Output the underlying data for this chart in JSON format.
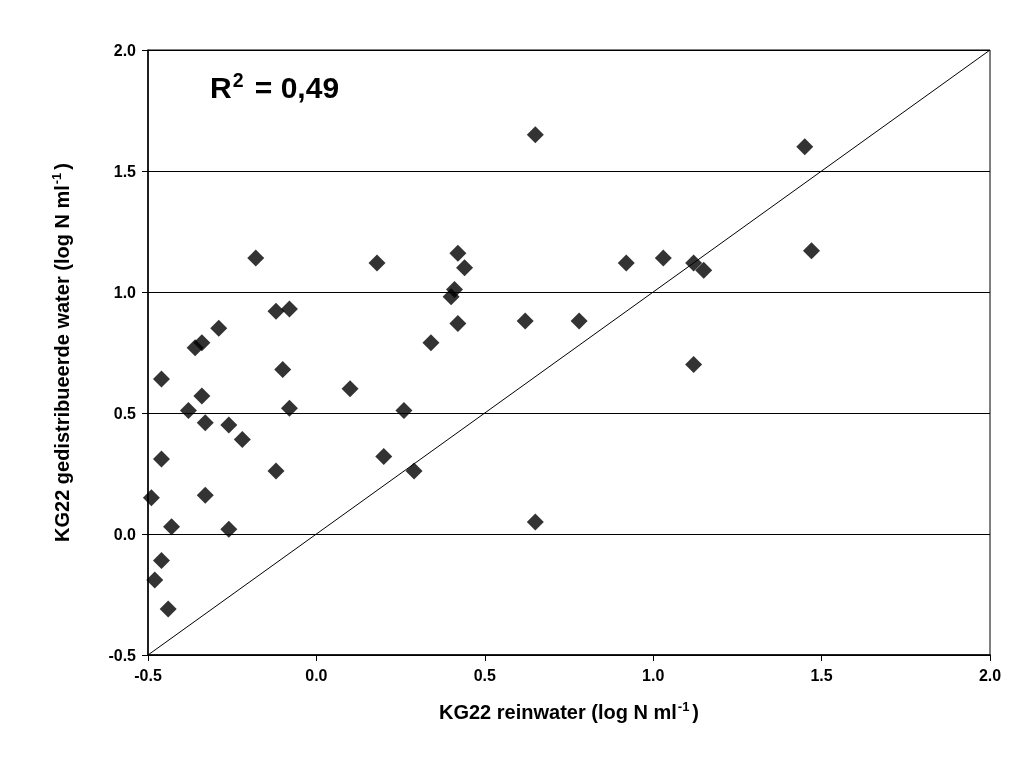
{
  "chart_data": {
    "type": "scatter",
    "xlabel": "KG22 reinwater (log N ml$^{-1}$)",
    "ylabel": "KG22 gedistribueerde water (log N ml$^{-1}$)",
    "annotations": [
      "R$^{2}$ = 0,49"
    ],
    "xlim": [
      -0.5,
      2.0
    ],
    "ylim": [
      -0.5,
      2.0
    ],
    "xticks": [
      {
        "value": -0.5,
        "label": "-0.5"
      },
      {
        "value": 0,
        "label": "0.0"
      },
      {
        "value": 0.5,
        "label": "0.5"
      },
      {
        "value": 1,
        "label": "1.0"
      },
      {
        "value": 1.5,
        "label": "1.5"
      },
      {
        "value": 2,
        "label": "2.0"
      }
    ],
    "yticks": [
      {
        "value": -0.5,
        "label": "-0.5"
      },
      {
        "value": 0,
        "label": "0.0"
      },
      {
        "value": 0.5,
        "label": "0.5"
      },
      {
        "value": 1,
        "label": "1.0"
      },
      {
        "value": 1.5,
        "label": "1.5"
      },
      {
        "value": 2,
        "label": "2.0"
      }
    ],
    "grid": "y",
    "marker": "diamond",
    "series": [
      {
        "color": "#000000",
        "x": [
          1.45,
          1.47,
          0.65,
          0.65,
          0.92,
          1.03,
          1.12,
          1.15,
          1.12,
          0.78,
          0.62,
          0.42,
          0.44,
          0.4,
          0.41,
          0.42,
          0.34,
          0.18,
          0.26,
          0.2,
          0.29,
          0.1,
          -0.18,
          -0.12,
          -0.08,
          -0.1,
          -0.08,
          -0.12,
          -0.29,
          -0.36,
          -0.34,
          -0.38,
          -0.34,
          -0.33,
          -0.26,
          -0.22,
          -0.33,
          -0.26,
          -0.46,
          -0.46,
          -0.49,
          -0.43,
          -0.46,
          -0.48,
          -0.44
        ],
        "values": [
          1.6,
          1.17,
          1.65,
          0.05,
          1.12,
          1.14,
          1.12,
          1.09,
          0.7,
          0.88,
          0.88,
          1.16,
          1.1,
          0.98,
          1.01,
          0.87,
          0.79,
          1.12,
          0.51,
          0.32,
          0.26,
          0.6,
          1.14,
          0.92,
          0.93,
          0.68,
          0.52,
          0.26,
          0.85,
          0.77,
          0.79,
          0.51,
          0.57,
          0.46,
          0.45,
          0.39,
          0.16,
          0.02,
          0.64,
          0.31,
          0.15,
          0.03,
          -0.11,
          -0.19,
          -0.31
        ]
      },
      {
        "type": "line",
        "color": "#000000",
        "marker": "none",
        "line_style": "solid",
        "x": [
          -0.5,
          2.0
        ],
        "values": [
          -0.5,
          2.0
        ]
      }
    ]
  }
}
